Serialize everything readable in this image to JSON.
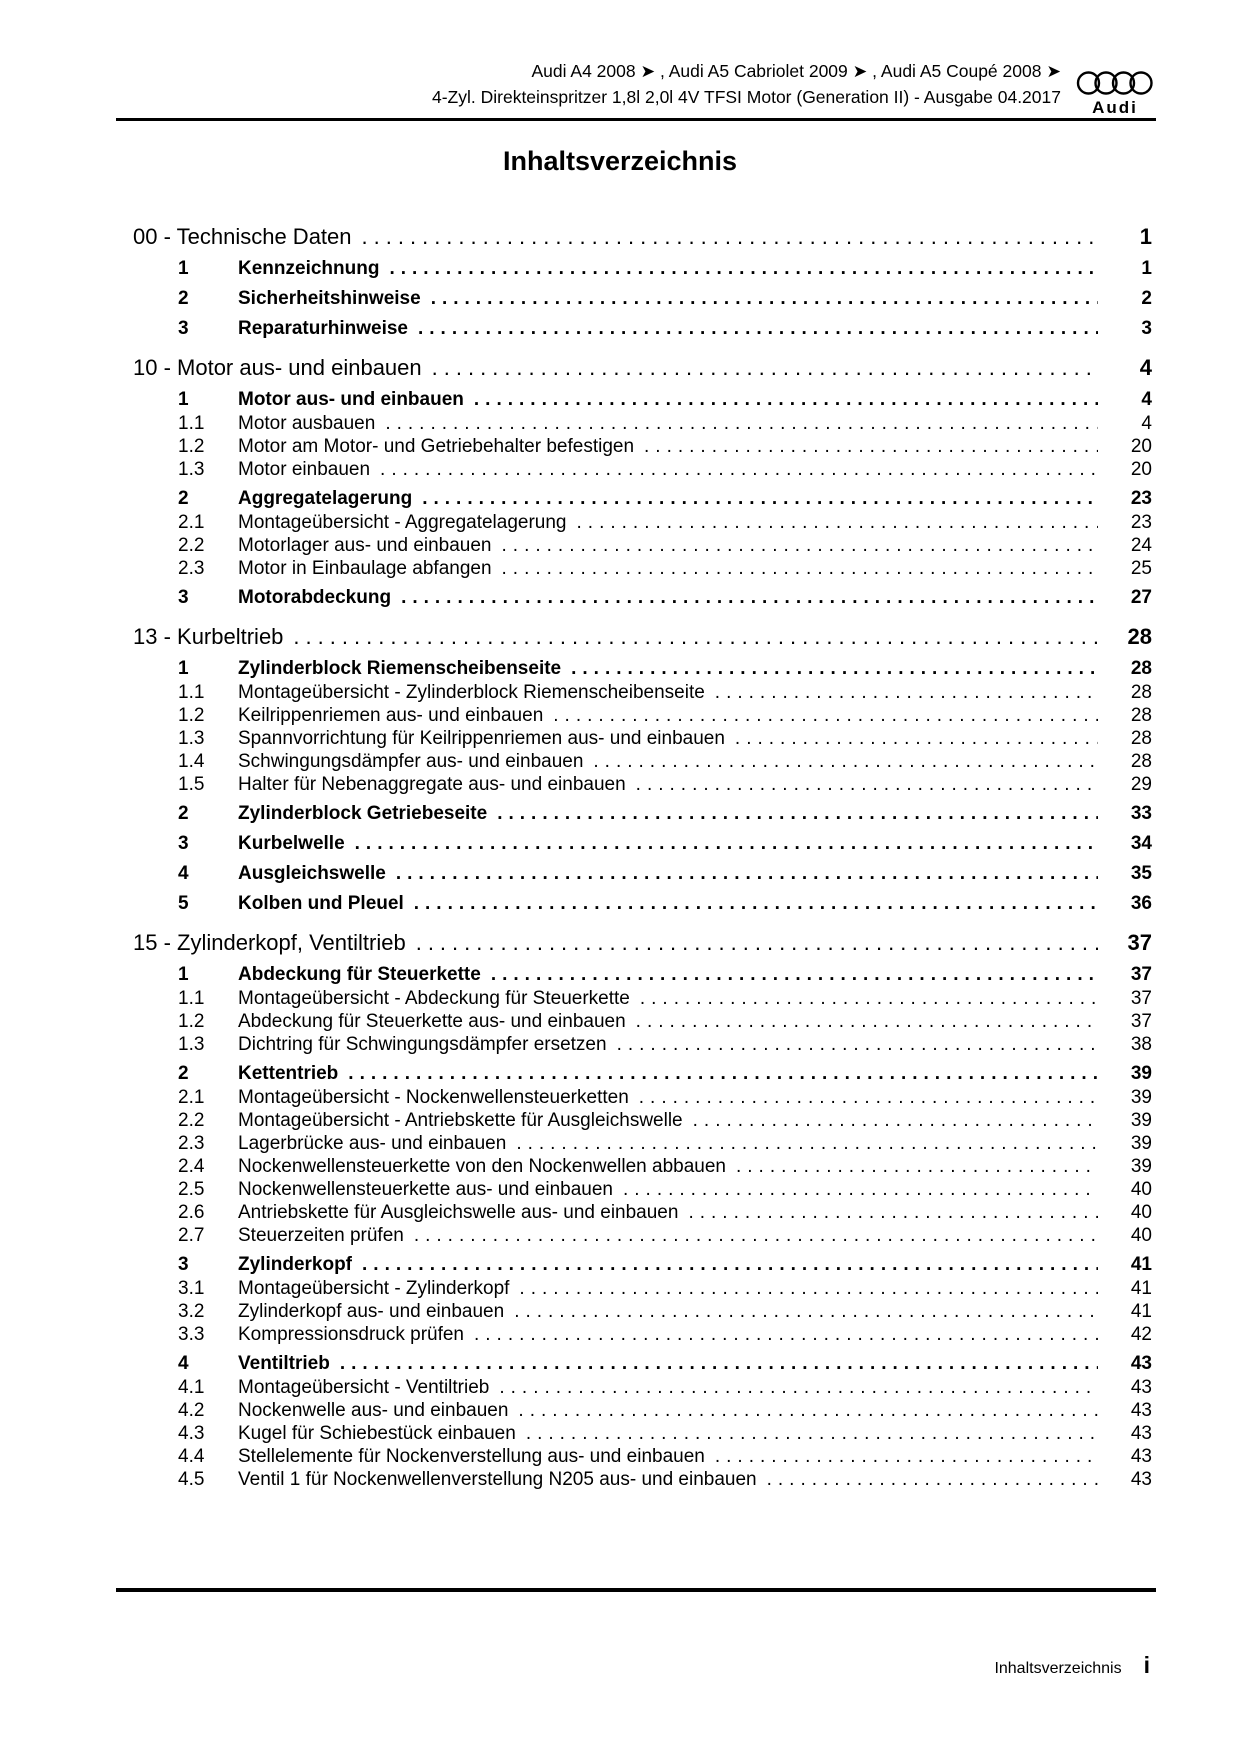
{
  "header": {
    "line1": "Audi A4 2008 ➤ , Audi A5 Cabriolet 2009 ➤ , Audi A5 Coupé 2008 ➤",
    "line2": "4-Zyl. Direkteinspritzer 1,8l 2,0l 4V TFSI Motor (Generation II) - Ausgabe 04.2017",
    "logo_wordmark": "Audi"
  },
  "title": "Inhaltsverzeichnis",
  "toc": {
    "chapters": [
      {
        "label": "00 - Technische Daten",
        "page": "1",
        "entries": [
          {
            "num": "1",
            "title": "Kennzeichnung",
            "page": "1",
            "level": 1
          },
          {
            "num": "2",
            "title": "Sicherheitshinweise",
            "page": "2",
            "level": 1
          },
          {
            "num": "3",
            "title": "Reparaturhinweise",
            "page": "3",
            "level": 1
          }
        ]
      },
      {
        "label": "10 - Motor aus- und einbauen",
        "page": "4",
        "entries": [
          {
            "num": "1",
            "title": "Motor aus- und einbauen",
            "page": "4",
            "level": 1
          },
          {
            "num": "1.1",
            "title": "Motor ausbauen",
            "page": "4",
            "level": 2
          },
          {
            "num": "1.2",
            "title": "Motor am Motor- und Getriebehalter befestigen",
            "page": "20",
            "level": 2
          },
          {
            "num": "1.3",
            "title": "Motor einbauen",
            "page": "20",
            "level": 2
          },
          {
            "num": "2",
            "title": "Aggregatelagerung",
            "page": "23",
            "level": 1
          },
          {
            "num": "2.1",
            "title": "Montageübersicht - Aggregatelagerung",
            "page": "23",
            "level": 2
          },
          {
            "num": "2.2",
            "title": "Motorlager aus- und einbauen",
            "page": "24",
            "level": 2
          },
          {
            "num": "2.3",
            "title": "Motor in Einbaulage abfangen",
            "page": "25",
            "level": 2
          },
          {
            "num": "3",
            "title": "Motorabdeckung",
            "page": "27",
            "level": 1
          }
        ]
      },
      {
        "label": "13 - Kurbeltrieb",
        "page": "28",
        "entries": [
          {
            "num": "1",
            "title": "Zylinderblock Riemenscheibenseite",
            "page": "28",
            "level": 1
          },
          {
            "num": "1.1",
            "title": "Montageübersicht - Zylinderblock Riemenscheibenseite",
            "page": "28",
            "level": 2
          },
          {
            "num": "1.2",
            "title": "Keilrippenriemen aus- und einbauen",
            "page": "28",
            "level": 2
          },
          {
            "num": "1.3",
            "title": "Spannvorrichtung für Keilrippenriemen aus- und einbauen",
            "page": "28",
            "level": 2
          },
          {
            "num": "1.4",
            "title": "Schwingungsdämpfer aus- und einbauen",
            "page": "28",
            "level": 2
          },
          {
            "num": "1.5",
            "title": "Halter für Nebenaggregate aus- und einbauen",
            "page": "29",
            "level": 2
          },
          {
            "num": "2",
            "title": "Zylinderblock Getriebeseite",
            "page": "33",
            "level": 1
          },
          {
            "num": "3",
            "title": "Kurbelwelle",
            "page": "34",
            "level": 1
          },
          {
            "num": "4",
            "title": "Ausgleichswelle",
            "page": "35",
            "level": 1
          },
          {
            "num": "5",
            "title": "Kolben und Pleuel",
            "page": "36",
            "level": 1
          }
        ]
      },
      {
        "label": "15 - Zylinderkopf, Ventiltrieb",
        "page": "37",
        "entries": [
          {
            "num": "1",
            "title": "Abdeckung für Steuerkette",
            "page": "37",
            "level": 1
          },
          {
            "num": "1.1",
            "title": "Montageübersicht - Abdeckung für Steuerkette",
            "page": "37",
            "level": 2
          },
          {
            "num": "1.2",
            "title": "Abdeckung für Steuerkette aus- und einbauen",
            "page": "37",
            "level": 2
          },
          {
            "num": "1.3",
            "title": "Dichtring für Schwingungsdämpfer ersetzen",
            "page": "38",
            "level": 2
          },
          {
            "num": "2",
            "title": "Kettentrieb",
            "page": "39",
            "level": 1
          },
          {
            "num": "2.1",
            "title": "Montageübersicht - Nockenwellensteuerketten",
            "page": "39",
            "level": 2
          },
          {
            "num": "2.2",
            "title": "Montageübersicht - Antriebskette für Ausgleichswelle",
            "page": "39",
            "level": 2
          },
          {
            "num": "2.3",
            "title": "Lagerbrücke aus- und einbauen",
            "page": "39",
            "level": 2
          },
          {
            "num": "2.4",
            "title": "Nockenwellensteuerkette von den Nockenwellen abbauen",
            "page": "39",
            "level": 2
          },
          {
            "num": "2.5",
            "title": "Nockenwellensteuerkette aus- und einbauen",
            "page": "40",
            "level": 2
          },
          {
            "num": "2.6",
            "title": "Antriebskette für Ausgleichswelle aus- und einbauen",
            "page": "40",
            "level": 2
          },
          {
            "num": "2.7",
            "title": "Steuerzeiten prüfen",
            "page": "40",
            "level": 2
          },
          {
            "num": "3",
            "title": "Zylinderkopf",
            "page": "41",
            "level": 1
          },
          {
            "num": "3.1",
            "title": "Montageübersicht - Zylinderkopf",
            "page": "41",
            "level": 2
          },
          {
            "num": "3.2",
            "title": "Zylinderkopf aus- und einbauen",
            "page": "41",
            "level": 2
          },
          {
            "num": "3.3",
            "title": "Kompressionsdruck prüfen",
            "page": "42",
            "level": 2
          },
          {
            "num": "4",
            "title": "Ventiltrieb",
            "page": "43",
            "level": 1
          },
          {
            "num": "4.1",
            "title": "Montageübersicht - Ventiltrieb",
            "page": "43",
            "level": 2
          },
          {
            "num": "4.2",
            "title": "Nockenwelle aus- und einbauen",
            "page": "43",
            "level": 2
          },
          {
            "num": "4.3",
            "title": "Kugel für Schiebestück einbauen",
            "page": "43",
            "level": 2
          },
          {
            "num": "4.4",
            "title": "Stellelemente für Nockenverstellung aus- und einbauen",
            "page": "43",
            "level": 2
          },
          {
            "num": "4.5",
            "title": "Ventil 1 für Nockenwellenverstellung N205 aus- und einbauen",
            "page": "43",
            "level": 2
          }
        ]
      }
    ]
  },
  "footer": {
    "label": "Inhaltsverzeichnis",
    "page": "i"
  }
}
